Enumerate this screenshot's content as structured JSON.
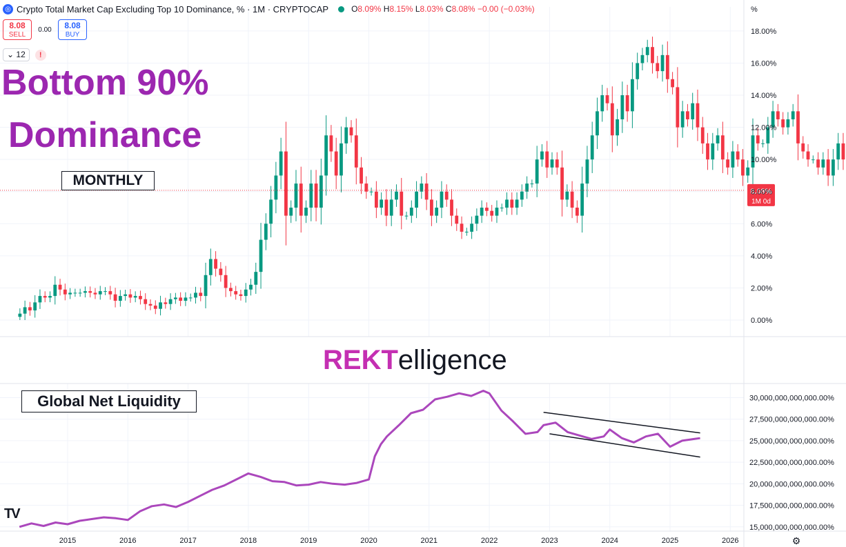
{
  "header": {
    "title": "Crypto Total Market Cap Excluding Top 10 Dominance, % · 1M · CRYPTOCAP",
    "symbol_icon": "cryptocap-logo-icon",
    "status_color": "#089981",
    "ohlc": {
      "o_label": "O",
      "o": "8.09%",
      "h_label": "H",
      "h": "8.15%",
      "l_label": "L",
      "l": "8.03%",
      "c_label": "C",
      "c": "8.08%",
      "change": "−0.00 (−0.03%)"
    }
  },
  "trade": {
    "sell_value": "8.08",
    "sell_label": "SELL",
    "spread": "0.00",
    "buy_value": "8.08",
    "buy_label": "BUY"
  },
  "indicators": {
    "collapse_icon": "chevron-down-icon",
    "count": "12",
    "warning_icon": "exclamation-icon",
    "warning": "!"
  },
  "overlay": {
    "headline_line1": "Bottom 90%",
    "headline_line2": "Dominance",
    "monthly_label": "MONTHLY",
    "liquidity_label": "Global Net Liquidity",
    "brand_part1": "REKT",
    "brand_part2": "elligence",
    "tv_logo": "TV"
  },
  "price_axis": {
    "unit": "%",
    "last_value": "8.08%",
    "last_sub": "1M 0d",
    "settings_icon": "gear-icon",
    "settings_glyph": "⚙"
  },
  "colors": {
    "up": "#089981",
    "down": "#f23645",
    "liquidity_line": "#ab47bc",
    "headline": "#9c27b0"
  },
  "chart_data": [
    {
      "type": "candlestick",
      "title": "Crypto Total Market Cap Excluding Top 10 Dominance, %",
      "interval": "1M",
      "ylim": [
        0,
        19.5
      ],
      "y_ticks": [
        "0.00%",
        "2.00%",
        "4.00%",
        "6.00%",
        "8.00%",
        "10.00%",
        "12.00%",
        "14.00%",
        "16.00%",
        "18.00%"
      ],
      "y_tick_values": [
        0,
        2,
        4,
        6,
        8,
        10,
        12,
        14,
        16,
        18
      ],
      "grid": true,
      "start": "2014-03",
      "close": [
        0.4,
        0.8,
        0.6,
        1.1,
        1.5,
        1.4,
        1.5,
        2.2,
        1.9,
        1.6,
        1.7,
        1.7,
        1.7,
        1.8,
        1.7,
        1.6,
        1.8,
        1.8,
        1.6,
        1.2,
        1.5,
        1.6,
        1.4,
        1.5,
        1.3,
        1.0,
        0.9,
        0.7,
        1.1,
        1.0,
        1.3,
        1.4,
        1.2,
        1.4,
        1.4,
        1.7,
        1.5,
        2.8,
        3.8,
        3.2,
        2.8,
        2.0,
        1.8,
        1.6,
        1.5,
        1.9,
        2.2,
        3.0,
        5.0,
        6.0,
        7.5,
        9.0,
        10.5,
        6.5,
        7.0,
        8.5,
        6.5,
        7.0,
        8.5,
        7.0,
        9.0,
        11.5,
        10.5,
        9.0,
        11.0,
        12.0,
        11.5,
        9.5,
        8.5,
        8.0,
        8.0,
        7.0,
        7.5,
        6.5,
        7.5,
        8.0,
        6.5,
        6.5,
        7.0,
        8.0,
        8.5,
        7.5,
        6.5,
        7.0,
        8.0,
        7.5,
        6.5,
        6.0,
        5.5,
        5.5,
        6.0,
        6.5,
        7.0,
        6.8,
        6.5,
        7.0,
        7.0,
        7.5,
        7.0,
        7.5,
        8.0,
        8.5,
        8.5,
        10.0,
        10.5,
        9.5,
        10.0,
        9.5,
        7.5,
        8.0,
        7.0,
        6.5,
        8.5,
        10.0,
        11.5,
        13.0,
        14.0,
        13.5,
        11.5,
        12.5,
        14.0,
        13.0,
        15.0,
        16.0,
        16.5,
        17.0,
        16.0,
        15.5,
        16.5,
        15.0,
        14.5,
        12.0,
        13.0,
        12.5,
        13.5,
        12.0,
        11.0,
        10.0,
        11.0,
        11.5,
        10.0,
        9.5,
        10.5,
        10.0,
        9.0,
        9.5,
        11.5,
        11.0,
        11.0,
        12.0,
        13.0,
        12.5,
        12.0,
        12.5,
        13.0,
        11.0,
        10.5,
        10.0,
        10.0,
        9.5,
        10.0,
        9.0,
        10.0,
        11.0,
        10.0,
        9.0,
        9.0,
        8.5,
        8.08
      ],
      "last_value": 8.08,
      "x_ticks": [
        "2015",
        "2016",
        "2017",
        "2018",
        "2019",
        "2020",
        "2021",
        "2022",
        "2023",
        "2024",
        "2025",
        "2026"
      ],
      "x_tick_values": [
        2015,
        2016,
        2017,
        2018,
        2019,
        2020,
        2021,
        2022,
        2023,
        2024,
        2025,
        2026
      ]
    },
    {
      "type": "line",
      "title": "Global Net Liquidity",
      "ylim": [
        14500000000000,
        31000000000000
      ],
      "y_ticks": [
        "15,000,000,000,000.00%",
        "17,500,000,000,000.00%",
        "20,000,000,000,000.00%",
        "22,500,000,000,000.00%",
        "25,000,000,000,000.00%",
        "27,500,000,000,000.00%",
        "30,000,000,000,000.00%"
      ],
      "y_tick_values": [
        15000000000000,
        17500000000000,
        20000000000000,
        22500000000000,
        25000000000000,
        27500000000000,
        30000000000000
      ],
      "x": [
        2014.2,
        2014.4,
        2014.6,
        2014.8,
        2015.0,
        2015.2,
        2015.4,
        2015.6,
        2015.8,
        2016.0,
        2016.2,
        2016.4,
        2016.6,
        2016.8,
        2017.0,
        2017.2,
        2017.4,
        2017.6,
        2017.8,
        2018.0,
        2018.2,
        2018.4,
        2018.6,
        2018.8,
        2019.0,
        2019.2,
        2019.4,
        2019.6,
        2019.8,
        2020.0,
        2020.1,
        2020.2,
        2020.3,
        2020.5,
        2020.7,
        2020.9,
        2021.1,
        2021.3,
        2021.5,
        2021.7,
        2021.9,
        2022.0,
        2022.2,
        2022.4,
        2022.6,
        2022.8,
        2022.9,
        2023.1,
        2023.3,
        2023.5,
        2023.7,
        2023.9,
        2024.0,
        2024.2,
        2024.4,
        2024.6,
        2024.8,
        2025.0,
        2025.2,
        2025.4,
        2025.5
      ],
      "y": [
        15.0,
        15.4,
        15.1,
        15.5,
        15.3,
        15.7,
        15.9,
        16.1,
        16.0,
        15.8,
        16.8,
        17.4,
        17.6,
        17.3,
        17.9,
        18.6,
        19.3,
        19.8,
        20.5,
        21.2,
        20.8,
        20.3,
        20.2,
        19.8,
        19.9,
        20.2,
        20.0,
        19.9,
        20.1,
        20.5,
        23.2,
        24.6,
        25.5,
        26.8,
        28.2,
        28.6,
        29.8,
        30.1,
        30.5,
        30.2,
        30.8,
        30.5,
        28.5,
        27.2,
        25.8,
        26.0,
        26.8,
        27.1,
        26.0,
        25.6,
        25.2,
        25.5,
        26.3,
        25.3,
        24.8,
        25.5,
        25.8,
        24.3,
        25.0,
        25.2,
        25.3
      ],
      "y_scale": 1000000000000
    }
  ]
}
